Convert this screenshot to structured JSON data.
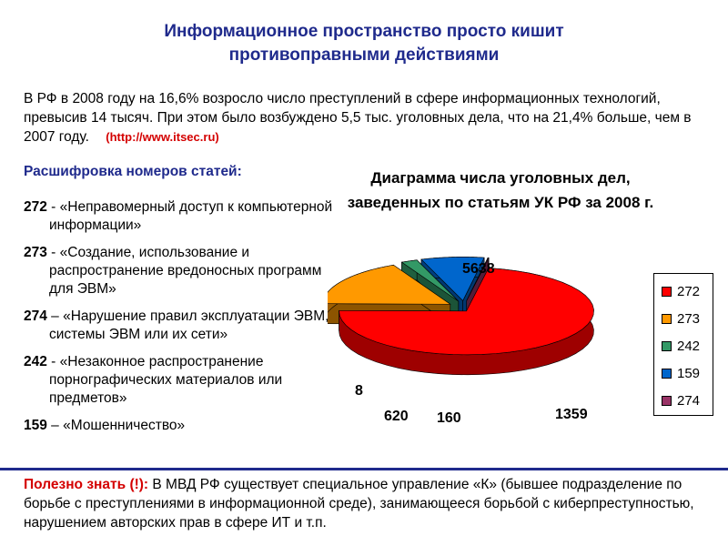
{
  "title": {
    "line1": "Информационное пространство просто кишит",
    "line2": "противоправными действиями"
  },
  "intro": {
    "text": "В РФ в 2008 году на 16,6% возросло число преступлений в сфере информационных технологий, превысив 14 тысяч. При этом было возбуждено 5,5 тыс. уголовных дела, что на 21,4% больше, чем в 2007 году.",
    "source": "(http://www.itsec.ru)"
  },
  "articles_heading": "Расшифровка номеров статей:",
  "articles": [
    {
      "num": "272",
      "sep": " - ",
      "text": "«Неправомерный доступ к компьютерной информации»"
    },
    {
      "num": "273",
      "sep": " - ",
      "text": "«Создание, использование и распространение вредоносных программ для ЭВМ»"
    },
    {
      "num": "274",
      "sep": " – ",
      "text": "«Нарушение правил эксплуатации ЭВМ, системы ЭВМ или их сети»"
    },
    {
      "num": "242",
      "sep": " - ",
      "text": "«Незаконное распространение порнографических материалов или предметов»"
    },
    {
      "num": "159",
      "sep": " – ",
      "text": "«Мошенничество»"
    }
  ],
  "chart_data": {
    "type": "pie",
    "title": "Диаграмма числа уголовных дел, заведенных по статьям УК РФ за 2008 г.",
    "categories": [
      "272",
      "273",
      "242",
      "159",
      "274"
    ],
    "values": [
      5638,
      1359,
      160,
      620,
      8
    ],
    "data_labels": [
      "5638",
      "1359",
      "160",
      "620",
      "8"
    ],
    "colors": [
      "#ff0000",
      "#ff9900",
      "#339966",
      "#0066cc",
      "#993366"
    ],
    "legend_placement": "right",
    "style": "3d-exploded"
  },
  "footer": {
    "label": "Полезно знать (!):",
    "text": " В МВД РФ существует специальное управление «К» (бывшее подразделение по борьбе с преступлениями в информационной среде), занимающееся борьбой с киберпреступностью,  нарушением авторских прав в сфере ИТ и т.п."
  }
}
